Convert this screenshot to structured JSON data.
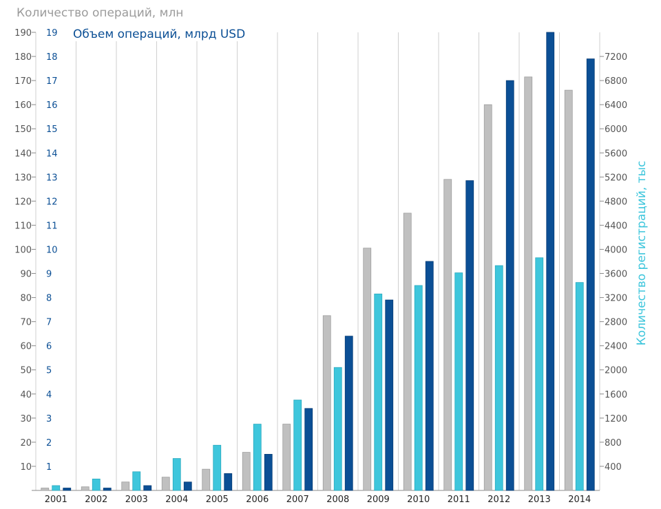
{
  "chart_data": {
    "type": "bar",
    "categories": [
      "2001",
      "2002",
      "2003",
      "2004",
      "2005",
      "2006",
      "2007",
      "2008",
      "2009",
      "2010",
      "2011",
      "2012",
      "2013",
      "2014"
    ],
    "series": [
      {
        "name": "Количество операций, млн",
        "axis": "left-outer",
        "color": "#c0c0c0",
        "values": [
          1,
          1.5,
          3.5,
          5.5,
          8.8,
          15.8,
          27.5,
          72.5,
          100.5,
          115,
          129,
          160,
          171.5,
          166
        ]
      },
      {
        "name": "Количество регистраций, тыс",
        "axis": "right",
        "color": "#3ec6dc",
        "values": [
          80,
          190,
          310,
          530,
          750,
          1100,
          1500,
          2040,
          3260,
          3400,
          3610,
          3730,
          3860,
          3450
        ]
      },
      {
        "name": "Объем операций, млрд USD",
        "axis": "left-inner",
        "color": "#0b4f95",
        "values": [
          0.1,
          0.1,
          0.2,
          0.35,
          0.7,
          1.5,
          3.4,
          6.4,
          7.9,
          9.5,
          12.85,
          17,
          19,
          17.9
        ]
      }
    ],
    "axes": {
      "left_outer": {
        "label": "Количество операций, млн",
        "min": 0,
        "max": 190,
        "ticks": [
          "10",
          "20",
          "30",
          "40",
          "50",
          "60",
          "70",
          "80",
          "90",
          "100",
          "110",
          "120",
          "130",
          "140",
          "150",
          "160",
          "170",
          "180",
          "190"
        ]
      },
      "left_inner": {
        "label": "Объем операций, млрд USD",
        "min": 0,
        "max": 19,
        "ticks": [
          "1",
          "2",
          "3",
          "4",
          "5",
          "6",
          "7",
          "8",
          "9",
          "10",
          "11",
          "12",
          "13",
          "14",
          "15",
          "16",
          "17",
          "18",
          "19"
        ]
      },
      "right": {
        "label": "Количество регистраций, тыс",
        "min": 0,
        "max": 7600,
        "ticks": [
          "400",
          "800",
          "1200",
          "1600",
          "2000",
          "2400",
          "2800",
          "3200",
          "3600",
          "4000",
          "4400",
          "4800",
          "5200",
          "5600",
          "6000",
          "6400",
          "6800",
          "7200"
        ]
      }
    },
    "grid": true,
    "colors": {
      "outer_tick": "#555555",
      "inner_tick": "#0b4f95",
      "right_tick": "#555555",
      "grid": "#cfcfcf"
    }
  }
}
